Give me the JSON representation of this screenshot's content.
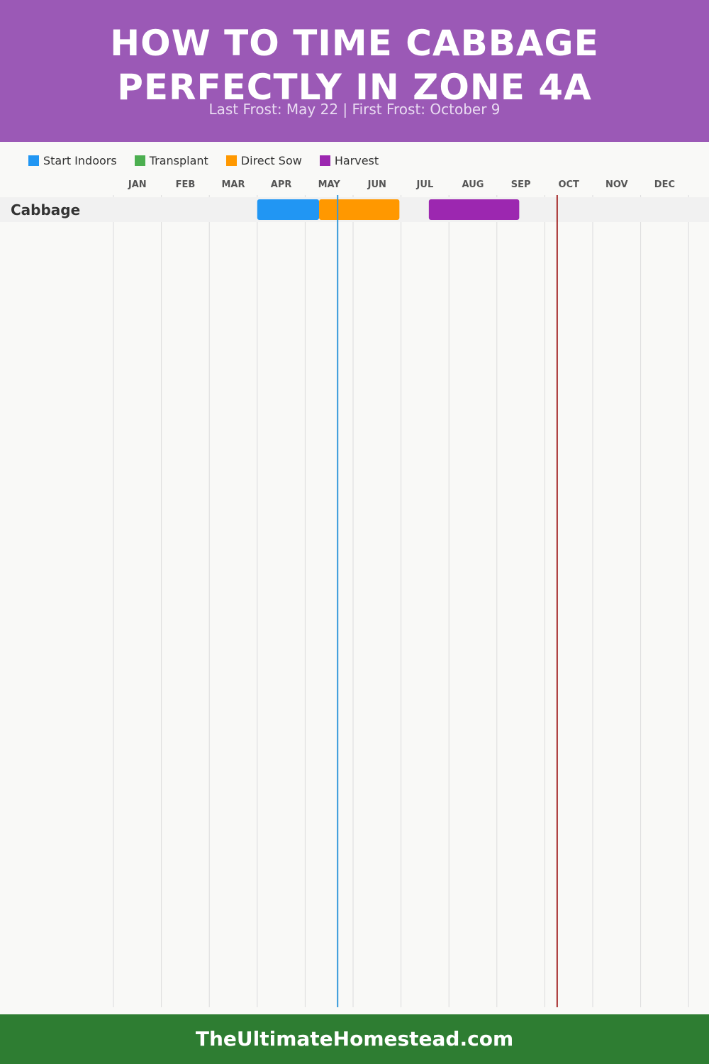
{
  "header": {
    "title_line1": "HOW TO TIME CABBAGE",
    "title_line2": "PERFECTLY IN ZONE 4A",
    "subtitle": "Last Frost: May 22 | First Frost: October 9"
  },
  "legend": [
    {
      "label": "Start Indoors",
      "color": "#2196f3"
    },
    {
      "label": "Transplant",
      "color": "#4caf50"
    },
    {
      "label": "Direct Sow",
      "color": "#ff9800"
    },
    {
      "label": "Harvest",
      "color": "#9c27b0"
    }
  ],
  "chart_data": {
    "type": "gantt",
    "months": [
      "JAN",
      "FEB",
      "MAR",
      "APR",
      "MAY",
      "JUN",
      "JUL",
      "AUG",
      "SEP",
      "OCT",
      "NOV",
      "DEC"
    ],
    "rows": [
      {
        "label": "Cabbage",
        "bars": [
          {
            "phase": "Start Indoors",
            "start": "04-01",
            "end": "05-10",
            "color": "#2196f3"
          },
          {
            "phase": "Direct Sow",
            "start": "05-10",
            "end": "06-30",
            "color": "#ff9800"
          },
          {
            "phase": "Harvest",
            "start": "07-19",
            "end": "09-15",
            "color": "#9c27b0"
          }
        ]
      }
    ],
    "markers": [
      {
        "name": "Last Frost",
        "date": "05-22",
        "color": "#3498db"
      },
      {
        "name": "First Frost",
        "date": "10-09",
        "color": "#a52a2a"
      }
    ]
  },
  "footer": {
    "text": "TheUltimateHomestead.com"
  }
}
